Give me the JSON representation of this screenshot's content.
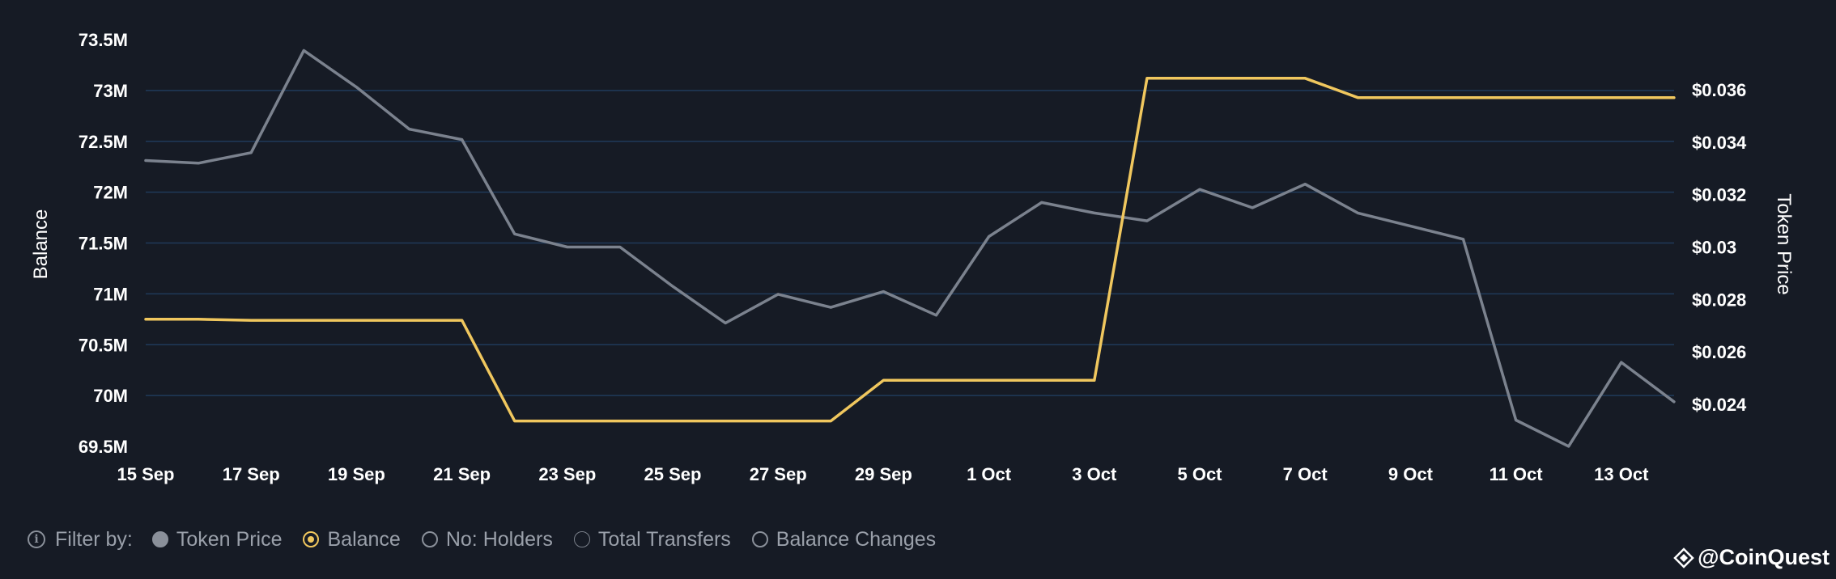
{
  "chart_data": {
    "type": "line",
    "x": [
      "15 Sep",
      "16 Sep",
      "17 Sep",
      "18 Sep",
      "19 Sep",
      "20 Sep",
      "21 Sep",
      "22 Sep",
      "23 Sep",
      "24 Sep",
      "25 Sep",
      "26 Sep",
      "27 Sep",
      "28 Sep",
      "29 Sep",
      "30 Sep",
      "1 Oct",
      "2 Oct",
      "3 Oct",
      "4 Oct",
      "5 Oct",
      "6 Oct",
      "7 Oct",
      "8 Oct",
      "9 Oct",
      "10 Oct",
      "11 Oct",
      "12 Oct",
      "13 Oct",
      "14 Oct"
    ],
    "x_tick_labels": [
      "15 Sep",
      "17 Sep",
      "19 Sep",
      "21 Sep",
      "23 Sep",
      "25 Sep",
      "27 Sep",
      "29 Sep",
      "1 Oct",
      "3 Oct",
      "5 Oct",
      "7 Oct",
      "9 Oct",
      "11 Oct",
      "13 Oct"
    ],
    "series": [
      {
        "name": "Balance",
        "axis": "left",
        "color": "#f0c75e",
        "values": [
          70.75,
          70.75,
          70.74,
          70.74,
          70.74,
          70.74,
          70.74,
          69.75,
          69.75,
          69.75,
          69.75,
          69.75,
          69.75,
          69.75,
          70.15,
          70.15,
          70.15,
          70.15,
          70.15,
          73.12,
          73.12,
          73.12,
          73.12,
          72.93,
          72.93,
          72.93,
          72.93,
          72.93,
          72.93,
          72.93
        ]
      },
      {
        "name": "Token Price",
        "axis": "right",
        "color": "#7b828e",
        "values": [
          0.0333,
          0.0332,
          0.0336,
          0.0375,
          0.0361,
          0.0345,
          0.0341,
          0.0305,
          0.03,
          0.03,
          0.0285,
          0.0271,
          0.0282,
          0.0277,
          0.0283,
          0.0274,
          0.0304,
          0.0317,
          0.0313,
          0.031,
          0.0322,
          0.0315,
          0.0324,
          0.0313,
          0.0308,
          0.0303,
          0.0234,
          0.0224,
          0.0256,
          0.0241
        ]
      }
    ],
    "y_left": {
      "label": "Balance",
      "min": 69.5,
      "max": 73.5,
      "ticks": [
        73.5,
        73,
        72.5,
        72,
        71.5,
        71,
        70.5,
        70,
        69.5
      ],
      "tick_labels": [
        "73.5M",
        "73M",
        "72.5M",
        "72M",
        "71.5M",
        "71M",
        "70.5M",
        "70M",
        "69.5M"
      ]
    },
    "y_right": {
      "label": "Token Price",
      "ticks": [
        0.036,
        0.034,
        0.032,
        0.03,
        0.028,
        0.026,
        0.024
      ],
      "tick_labels": [
        "$0.036",
        "$0.034",
        "$0.032",
        "$0.03",
        "$0.028",
        "$0.026",
        "$0.024"
      ]
    },
    "grid": true
  },
  "filter": {
    "label": "Filter by:",
    "options": [
      {
        "label": "Token Price",
        "state": "filled"
      },
      {
        "label": "Balance",
        "state": "selected"
      },
      {
        "label": "No: Holders",
        "state": "empty"
      },
      {
        "label": "Total Transfers",
        "state": "thin"
      },
      {
        "label": "Balance Changes",
        "state": "empty"
      }
    ]
  },
  "brand": {
    "text": "@CoinQuest"
  },
  "colors": {
    "background": "#161b25",
    "grid": "#1f3a5a",
    "balance": "#f0c75e",
    "price": "#7b828e"
  }
}
